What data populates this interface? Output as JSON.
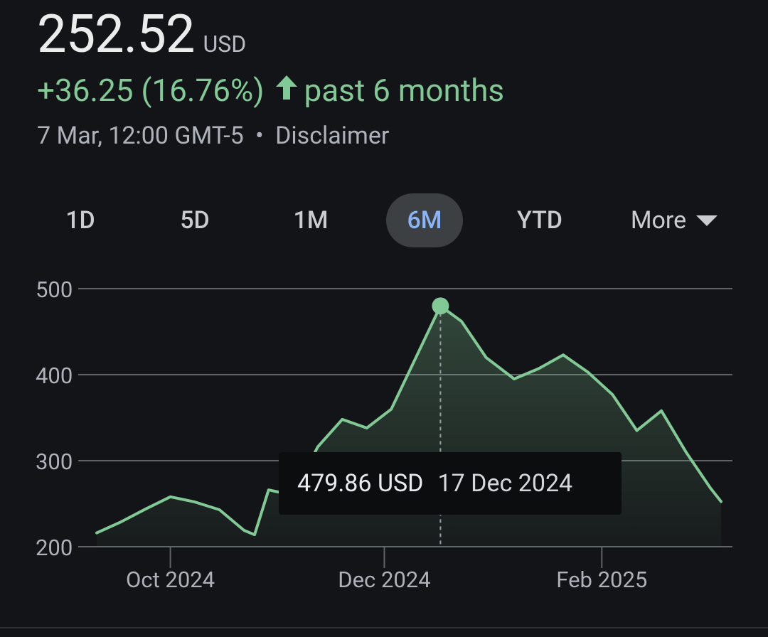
{
  "quote": {
    "price": "252.52",
    "currency": "USD",
    "change": "+36.25 (16.76%)",
    "period": "past 6 months",
    "timestamp": "7 Mar, 12:00 GMT-5",
    "separator": "•",
    "disclaimer": "Disclaimer",
    "positive_color": "#81c995"
  },
  "tabs": [
    {
      "label": "1D",
      "active": false
    },
    {
      "label": "5D",
      "active": false
    },
    {
      "label": "1M",
      "active": false
    },
    {
      "label": "6M",
      "active": true
    },
    {
      "label": "YTD",
      "active": false
    },
    {
      "label": "More",
      "active": false
    }
  ],
  "tooltip": {
    "price": "479.86 USD",
    "date": "17 Dec 2024"
  },
  "chart_data": {
    "type": "area",
    "title": "",
    "xlabel": "",
    "ylabel": "",
    "ylim": [
      200,
      500
    ],
    "y_ticks": [
      "500",
      "400",
      "300",
      "200"
    ],
    "x_ticks": [
      "Oct 2024",
      "Dec 2024",
      "Feb 2025"
    ],
    "line_color": "#81c995",
    "x": [
      "2024-09-10",
      "2024-09-17",
      "2024-09-24",
      "2024-10-01",
      "2024-10-08",
      "2024-10-15",
      "2024-10-22",
      "2024-10-25",
      "2024-10-29",
      "2024-11-05",
      "2024-11-12",
      "2024-11-19",
      "2024-11-26",
      "2024-12-03",
      "2024-12-10",
      "2024-12-17",
      "2024-12-23",
      "2024-12-30",
      "2025-01-07",
      "2025-01-14",
      "2025-01-21",
      "2025-01-28",
      "2025-02-04",
      "2025-02-11",
      "2025-02-18",
      "2025-02-25",
      "2025-03-04",
      "2025-03-07"
    ],
    "values": [
      216,
      229,
      244,
      258,
      252,
      243,
      219,
      214,
      266,
      260,
      316,
      348,
      338,
      360,
      420,
      479.86,
      462,
      420,
      395,
      407,
      423,
      403,
      377,
      335,
      358,
      310,
      268,
      252.52
    ]
  }
}
